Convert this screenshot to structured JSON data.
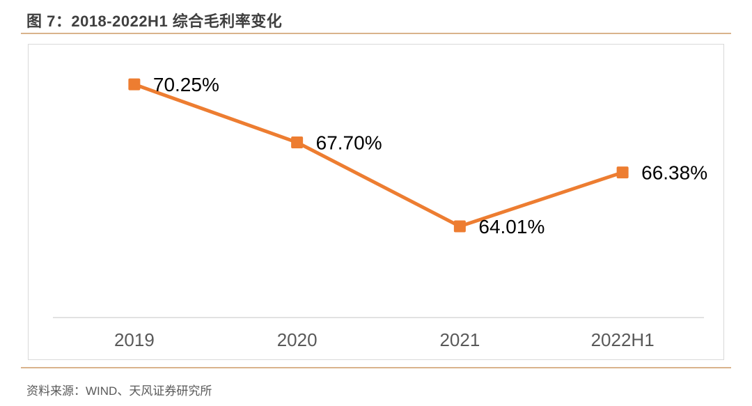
{
  "figure": {
    "title": "图 7：2018-2022H1 综合毛利率变化",
    "source": "资料来源：WIND、天风证券研究所"
  },
  "colors": {
    "accent_orange": "#ED7D31",
    "separator_tan": "#D9B38C",
    "title_text": "#3F3F3F",
    "axis_text": "#595959",
    "data_label_text": "#000000",
    "chart_border": "#D9D9D9",
    "axis_line": "#D9D9D9",
    "background": "#FFFFFF"
  },
  "chart_data": {
    "type": "line",
    "title": "图 7：2018-2022H1 综合毛利率变化",
    "categories": [
      "2019",
      "2020",
      "2021",
      "2022H1"
    ],
    "values": [
      70.25,
      67.7,
      64.01,
      66.38
    ],
    "point_labels": [
      "70.25%",
      "67.70%",
      "64.01%",
      "66.38%"
    ],
    "xlabel": "",
    "ylabel": "",
    "ylim": [
      60,
      72
    ],
    "grid": false,
    "legend": "none",
    "marker": "square",
    "line_color": "#ED7D31",
    "marker_color": "#ED7D31"
  }
}
